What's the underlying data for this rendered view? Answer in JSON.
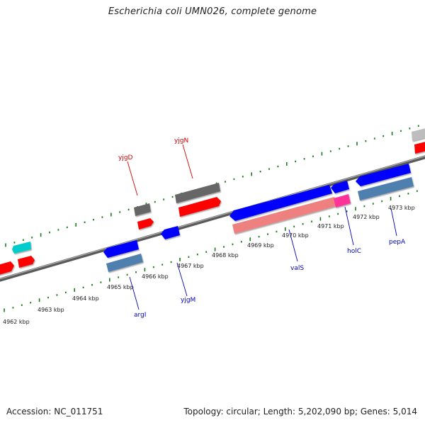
{
  "header": {
    "title": "Escherichia coli UMN026, complete genome"
  },
  "footer": {
    "accession": "Accession: NC_011751",
    "topology": "Topology: circular; Length: 5,202,090 bp; Genes: 5,014"
  },
  "ruler": {
    "labels": [
      "4962 kbp",
      "4963 kbp",
      "4964 kbp",
      "4965 kbp",
      "4966 kbp",
      "4967 kbp",
      "4968 kbp",
      "4969 kbp",
      "4970 kbp",
      "4971 kbp",
      "4972 kbp",
      "4973 kbp"
    ]
  },
  "gene_labels": {
    "yjgD": "yjgD",
    "yjgN": "yjgN",
    "argI": "argI",
    "yjgM": "yjgM",
    "valS": "valS",
    "holC": "holC",
    "pepA": "pepA"
  },
  "colors": {
    "forward_gene": "#ff0000",
    "reverse_gene": "#0000ff",
    "gray_feature": "#666666",
    "steel_feature": "#4f7fae",
    "cyan_feature": "#00cccc",
    "pink_feature": "#ff3399",
    "salmon_feature": "#ee7f7f",
    "label_red": "#cc0000",
    "label_blue": "#0000bb",
    "tick_green": "#1a7a1a"
  }
}
